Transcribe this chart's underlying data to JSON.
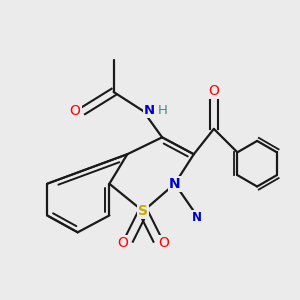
{
  "background_color": "#ebebeb",
  "bond_color": "#1a1a1a",
  "atom_colors": {
    "O": "#ff0000",
    "N": "#0000cc",
    "S": "#ccaa00",
    "H": "#4a8888",
    "C": "#1a1a1a"
  },
  "figsize": [
    3.0,
    3.0
  ],
  "dpi": 100
}
